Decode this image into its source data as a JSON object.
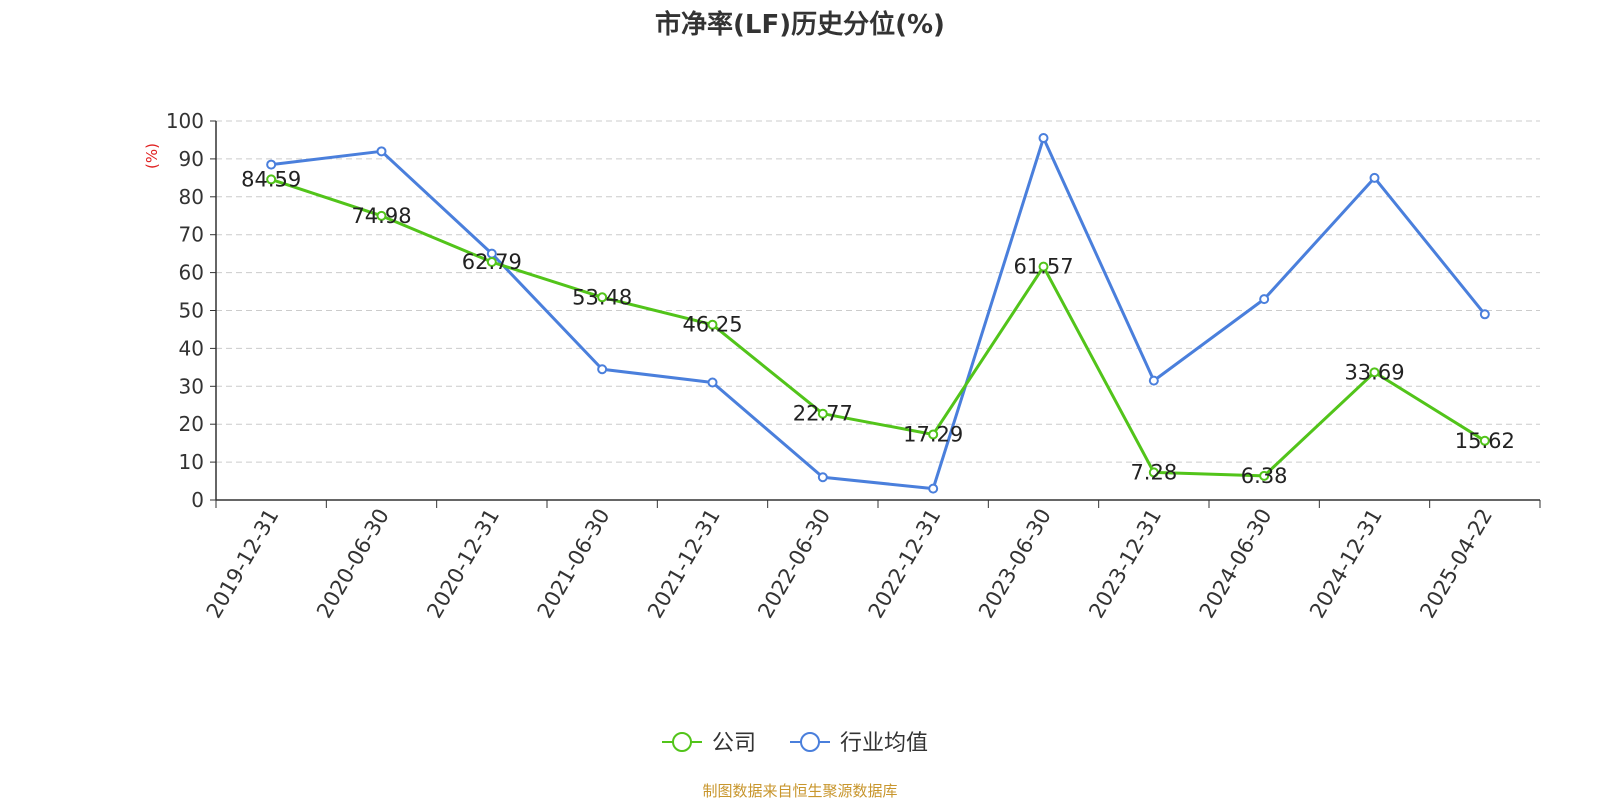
{
  "chart_data": {
    "type": "line",
    "title": "市净率(LF)历史分位(%)",
    "ylabel": "(%)",
    "xlabel": "",
    "ylim": [
      0,
      100
    ],
    "yticks": [
      0,
      10,
      20,
      30,
      40,
      50,
      60,
      70,
      80,
      90,
      100
    ],
    "grid": true,
    "legend_position": "bottom",
    "categories": [
      "2019-12-31",
      "2020-06-30",
      "2020-12-31",
      "2021-06-30",
      "2021-12-31",
      "2022-06-30",
      "2022-12-31",
      "2023-06-30",
      "2023-12-31",
      "2024-06-30",
      "2024-12-31",
      "2025-04-22"
    ],
    "series": [
      {
        "name": "公司",
        "color": "#52c41a",
        "values": [
          84.59,
          74.98,
          62.79,
          53.48,
          46.25,
          22.77,
          17.29,
          61.57,
          7.28,
          6.38,
          33.69,
          15.62
        ],
        "labels": [
          "84.59",
          "74.98",
          "62.79",
          "53.48",
          "46.25",
          "22.77",
          "17.29",
          "61.57",
          "7.28",
          "6.38",
          "33.69",
          "15.62"
        ]
      },
      {
        "name": "行业均值",
        "color": "#4a7fdc",
        "values": [
          88.5,
          92,
          65,
          34.5,
          31,
          6,
          3,
          95.5,
          31.5,
          53,
          85,
          49
        ]
      }
    ]
  },
  "source": "制图数据来自恒生聚源数据库"
}
